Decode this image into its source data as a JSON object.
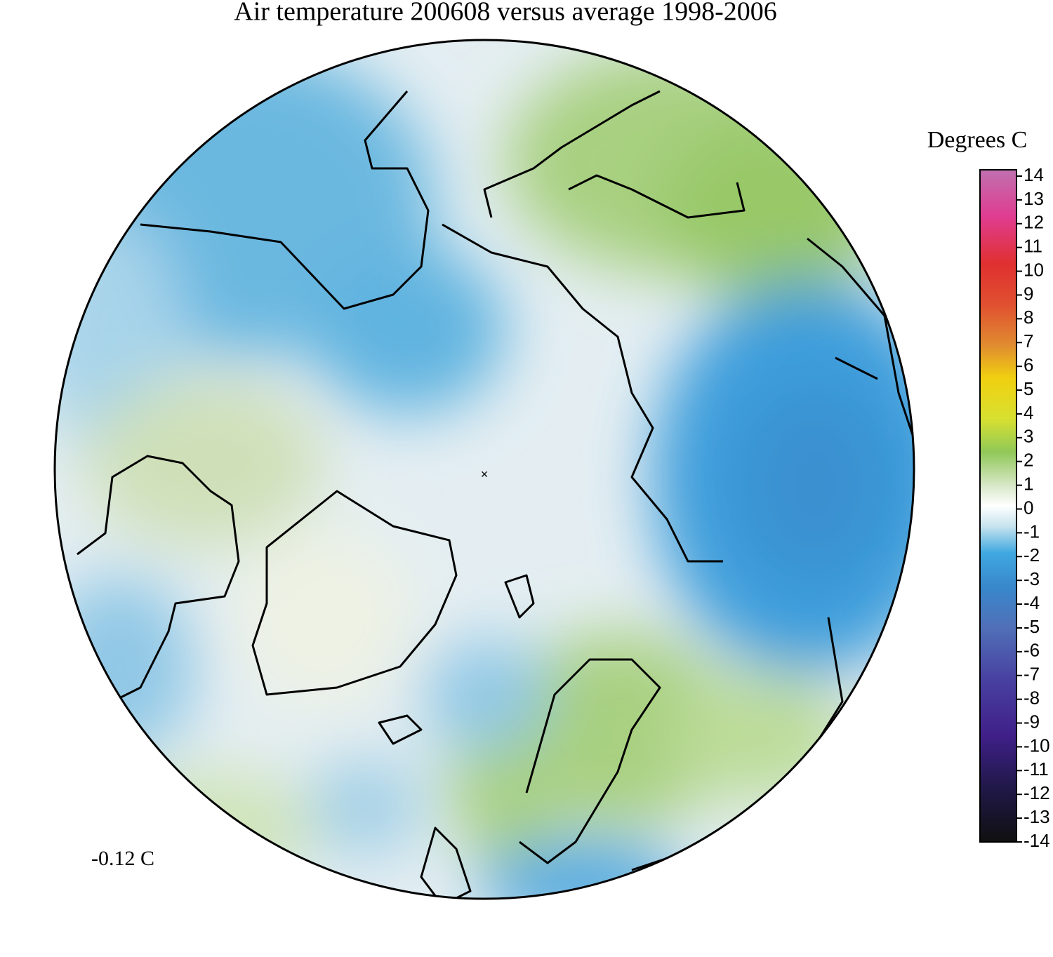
{
  "title": "Air temperature 200608 versus average 1998-2006",
  "colorbar": {
    "label": "Degrees C",
    "ticks": [
      14,
      13,
      12,
      11,
      10,
      9,
      8,
      7,
      6,
      5,
      4,
      3,
      2,
      1,
      0,
      -1,
      -2,
      -3,
      -4,
      -5,
      -6,
      -7,
      -8,
      -9,
      -10,
      -11,
      -12,
      -13,
      -14
    ]
  },
  "annotation": "-0.12 C"
}
